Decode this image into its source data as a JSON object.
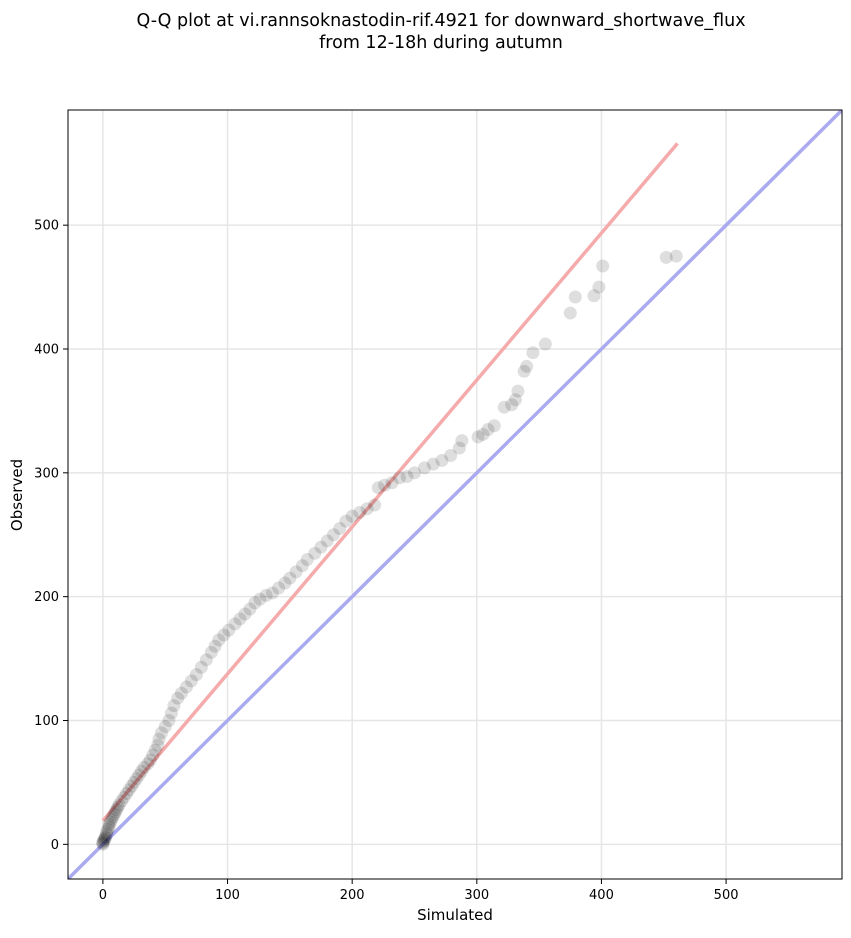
{
  "chart_data": {
    "type": "scatter",
    "title_line1": "Q-Q plot at vi.rannsoknastodin-rif.4921 for downward_shortwave_flux",
    "title_line2": "from 12-18h during autumn",
    "xlabel": "Simulated",
    "ylabel": "Observed",
    "xlim": [
      -28,
      593
    ],
    "ylim": [
      -28,
      593
    ],
    "xticks": [
      0,
      100,
      200,
      300,
      400,
      500
    ],
    "yticks": [
      0,
      100,
      200,
      300,
      400,
      500
    ],
    "grid": true,
    "colors": {
      "points": "#000000",
      "fit_line": "#f4a6a6",
      "identity_line": "#aaaaf0"
    },
    "fit_line": {
      "x": [
        0,
        461
      ],
      "y": [
        19,
        566
      ]
    },
    "identity_line": {
      "x": [
        -28,
        593
      ],
      "y": [
        -28,
        593
      ]
    },
    "points": [
      [
        0,
        0
      ],
      [
        0,
        1
      ],
      [
        0,
        2
      ],
      [
        1,
        3
      ],
      [
        1,
        4
      ],
      [
        2,
        5
      ],
      [
        2,
        6
      ],
      [
        3,
        8
      ],
      [
        3,
        10
      ],
      [
        4,
        12
      ],
      [
        5,
        14
      ],
      [
        5,
        16
      ],
      [
        6,
        18
      ],
      [
        7,
        20
      ],
      [
        8,
        22
      ],
      [
        9,
        24
      ],
      [
        10,
        26
      ],
      [
        11,
        28
      ],
      [
        12,
        30
      ],
      [
        13,
        32
      ],
      [
        15,
        35
      ],
      [
        17,
        38
      ],
      [
        19,
        41
      ],
      [
        21,
        44
      ],
      [
        23,
        47
      ],
      [
        25,
        50
      ],
      [
        27,
        53
      ],
      [
        29,
        56
      ],
      [
        31,
        59
      ],
      [
        33,
        62
      ],
      [
        36,
        65
      ],
      [
        38,
        68
      ],
      [
        40,
        72
      ],
      [
        42,
        76
      ],
      [
        44,
        80
      ],
      [
        45,
        85
      ],
      [
        47,
        90
      ],
      [
        50,
        95
      ],
      [
        53,
        100
      ],
      [
        55,
        106
      ],
      [
        57,
        112
      ],
      [
        60,
        118
      ],
      [
        63,
        122
      ],
      [
        67,
        127
      ],
      [
        71,
        132
      ],
      [
        75,
        137
      ],
      [
        79,
        143
      ],
      [
        83,
        149
      ],
      [
        87,
        155
      ],
      [
        90,
        160
      ],
      [
        93,
        165
      ],
      [
        97,
        169
      ],
      [
        101,
        173
      ],
      [
        106,
        178
      ],
      [
        110,
        182
      ],
      [
        114,
        186
      ],
      [
        118,
        190
      ],
      [
        122,
        195
      ],
      [
        126,
        198
      ],
      [
        131,
        201
      ],
      [
        136,
        203
      ],
      [
        141,
        207
      ],
      [
        146,
        211
      ],
      [
        150,
        215
      ],
      [
        155,
        220
      ],
      [
        160,
        225
      ],
      [
        164,
        230
      ],
      [
        170,
        235
      ],
      [
        175,
        240
      ],
      [
        180,
        245
      ],
      [
        185,
        250
      ],
      [
        190,
        255
      ],
      [
        195,
        261
      ],
      [
        200,
        265
      ],
      [
        206,
        268
      ],
      [
        212,
        271
      ],
      [
        218,
        274
      ],
      [
        221,
        288
      ],
      [
        226,
        290
      ],
      [
        232,
        292
      ],
      [
        238,
        296
      ],
      [
        244,
        297
      ],
      [
        250,
        300
      ],
      [
        258,
        304
      ],
      [
        265,
        307
      ],
      [
        272,
        310
      ],
      [
        279,
        314
      ],
      [
        286,
        320
      ],
      [
        288,
        326
      ],
      [
        301,
        329
      ],
      [
        305,
        331
      ],
      [
        309,
        335
      ],
      [
        314,
        338
      ],
      [
        322,
        353
      ],
      [
        328,
        355
      ],
      [
        331,
        359
      ],
      [
        333,
        366
      ],
      [
        338,
        382
      ],
      [
        340,
        386
      ],
      [
        345,
        397
      ],
      [
        355,
        404
      ],
      [
        375,
        429
      ],
      [
        379,
        442
      ],
      [
        394,
        443
      ],
      [
        398,
        450
      ],
      [
        401,
        467
      ],
      [
        452,
        474
      ],
      [
        460,
        475
      ]
    ]
  }
}
